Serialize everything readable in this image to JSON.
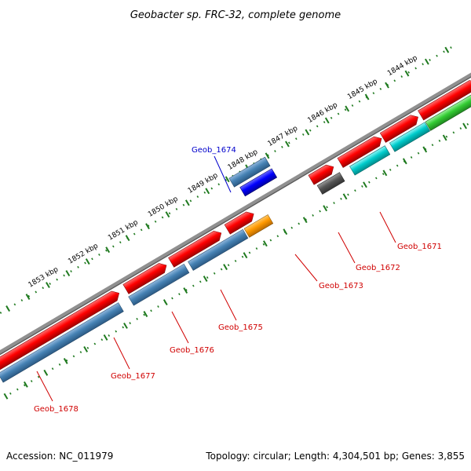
{
  "title": "Geobacter sp. FRC-32, complete genome",
  "footer": {
    "accession": "Accession: NC_011979",
    "summary": "Topology: circular; Length: 4,304,501 bp; Genes: 3,855"
  },
  "ticks": [
    "1844 kbp",
    "1845 kbp",
    "1846 kbp",
    "1847 kbp",
    "1848 kbp",
    "1849 kbp",
    "1850 kbp",
    "1851 kbp",
    "1852 kbp",
    "1853 kbp"
  ],
  "genes": [
    {
      "name": "Geob_1671",
      "color": "#d00000"
    },
    {
      "name": "Geob_1672",
      "color": "#d00000"
    },
    {
      "name": "Geob_1673",
      "color": "#d00000"
    },
    {
      "name": "Geob_1674",
      "color": "#0000cc"
    },
    {
      "name": "Geob_1675",
      "color": "#d00000"
    },
    {
      "name": "Geob_1676",
      "color": "#d00000"
    },
    {
      "name": "Geob_1677",
      "color": "#d00000"
    },
    {
      "name": "Geob_1678",
      "color": "#d00000"
    }
  ],
  "colors": {
    "backbone": "#808080",
    "tick": "#1f7a1f",
    "cds_forward": "#ff0000",
    "cds_reverse": "#4682b4",
    "rna": "#00cccc",
    "other_blue": "#0000ff",
    "orange": "#ff9900",
    "green": "#33cc33",
    "dark_grey": "#555555",
    "light_grey": "#bbbbbb"
  }
}
